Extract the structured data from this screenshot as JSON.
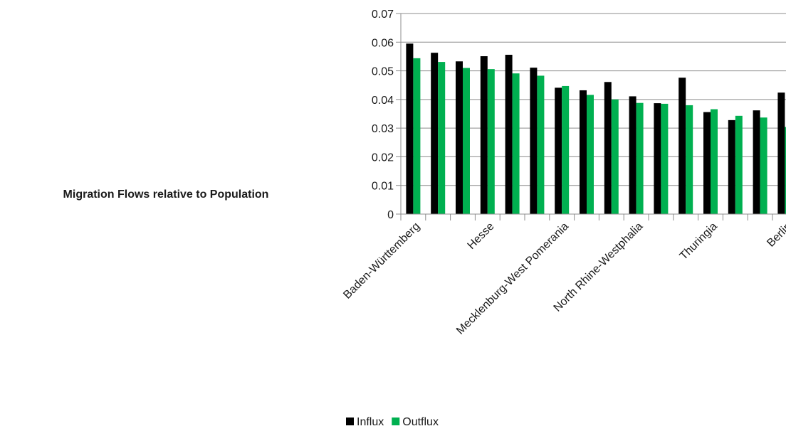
{
  "chart_data": {
    "type": "bar",
    "title": "Migration Flows relative to Population",
    "xlabel": "",
    "ylabel": "",
    "ylim": [
      0,
      0.07
    ],
    "yticks": [
      "0",
      "0.01",
      "0.02",
      "0.03",
      "0.04",
      "0.05",
      "0.06",
      "0.07"
    ],
    "ytick_values": [
      0,
      0.01,
      0.02,
      0.03,
      0.04,
      0.05,
      0.06,
      0.07
    ],
    "category_count": 16,
    "visible_tick_labels": [
      {
        "index": 0,
        "label": "Baden-Württemberg"
      },
      {
        "index": 3,
        "label": "Hesse"
      },
      {
        "index": 6,
        "label": "Mecklenburg-West Pomerania"
      },
      {
        "index": 9,
        "label": "North Rhine-Westphalia"
      },
      {
        "index": 12,
        "label": "Thuringia"
      },
      {
        "index": 15,
        "label": "Berlin"
      }
    ],
    "grid": true,
    "legend": "bottom",
    "series": [
      {
        "name": "Influx",
        "color": "#000000",
        "values": [
          0.0595,
          0.0563,
          0.0533,
          0.0551,
          0.0556,
          0.0511,
          0.0441,
          0.0432,
          0.0461,
          0.0411,
          0.0387,
          0.0476,
          0.0356,
          0.0328,
          0.0362,
          0.0424
        ]
      },
      {
        "name": "Outflux",
        "color": "#00b050",
        "values": [
          0.0544,
          0.0531,
          0.051,
          0.0506,
          0.0491,
          0.0483,
          0.0447,
          0.0416,
          0.04,
          0.0388,
          0.0385,
          0.038,
          0.0366,
          0.0343,
          0.0337,
          0.0304
        ]
      }
    ]
  }
}
